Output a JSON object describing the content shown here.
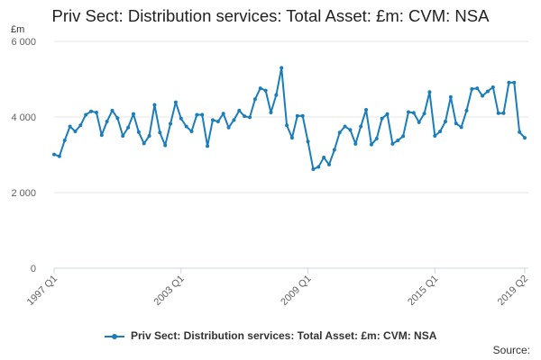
{
  "colors": {
    "series": "#1b7db9",
    "grid": "#e6e6e6",
    "axis": "#ccd6eb",
    "text": "#606060"
  },
  "source_label": "Source:",
  "chart_data": {
    "type": "line",
    "title": "Priv Sect: Distribution services: Total Asset: £m: CVM: NSA",
    "ylabel": "£m",
    "ylim": [
      0,
      6000
    ],
    "yticks": [
      0,
      2000,
      4000,
      6000
    ],
    "ytick_labels": [
      "0",
      "2 000",
      "4 000",
      "6 000"
    ],
    "xtick_labels": [
      "1997 Q1",
      "2003 Q1",
      "2009 Q1",
      "2015 Q1",
      "2019 Q2"
    ],
    "xtick_index": [
      0,
      24,
      48,
      72,
      89
    ],
    "legend_position": "bottom",
    "grid": true,
    "series": [
      {
        "name": "Priv Sect: Distribution services: Total Asset: £m: CVM: NSA",
        "x": [
          "1997 Q1",
          "1997 Q2",
          "1997 Q3",
          "1997 Q4",
          "1998 Q1",
          "1998 Q2",
          "1998 Q3",
          "1998 Q4",
          "1999 Q1",
          "1999 Q2",
          "1999 Q3",
          "1999 Q4",
          "2000 Q1",
          "2000 Q2",
          "2000 Q3",
          "2000 Q4",
          "2001 Q1",
          "2001 Q2",
          "2001 Q3",
          "2001 Q4",
          "2002 Q1",
          "2002 Q2",
          "2002 Q3",
          "2002 Q4",
          "2003 Q1",
          "2003 Q2",
          "2003 Q3",
          "2003 Q4",
          "2004 Q1",
          "2004 Q2",
          "2004 Q3",
          "2004 Q4",
          "2005 Q1",
          "2005 Q2",
          "2005 Q3",
          "2005 Q4",
          "2006 Q1",
          "2006 Q2",
          "2006 Q3",
          "2006 Q4",
          "2007 Q1",
          "2007 Q2",
          "2007 Q3",
          "2007 Q4",
          "2008 Q1",
          "2008 Q2",
          "2008 Q3",
          "2008 Q4",
          "2009 Q1",
          "2009 Q2",
          "2009 Q3",
          "2009 Q4",
          "2010 Q1",
          "2010 Q2",
          "2010 Q3",
          "2010 Q4",
          "2011 Q1",
          "2011 Q2",
          "2011 Q3",
          "2011 Q4",
          "2012 Q1",
          "2012 Q2",
          "2012 Q3",
          "2012 Q4",
          "2013 Q1",
          "2013 Q2",
          "2013 Q3",
          "2013 Q4",
          "2014 Q1",
          "2014 Q2",
          "2014 Q3",
          "2014 Q4",
          "2015 Q1",
          "2015 Q2",
          "2015 Q3",
          "2015 Q4",
          "2016 Q1",
          "2016 Q2",
          "2016 Q3",
          "2016 Q4",
          "2017 Q1",
          "2017 Q2",
          "2017 Q3",
          "2017 Q4",
          "2018 Q1",
          "2018 Q2",
          "2018 Q3",
          "2018 Q4",
          "2019 Q1",
          "2019 Q2"
        ],
        "values": [
          3010,
          2960,
          3380,
          3750,
          3620,
          3780,
          4060,
          4150,
          4120,
          3520,
          3880,
          4170,
          3970,
          3500,
          3720,
          4080,
          3600,
          3300,
          3500,
          4320,
          3590,
          3250,
          3820,
          4390,
          3960,
          3750,
          3620,
          4060,
          4060,
          3230,
          3920,
          3880,
          4090,
          3720,
          3920,
          4170,
          4020,
          3990,
          4470,
          4760,
          4700,
          4120,
          4580,
          5300,
          3780,
          3450,
          4030,
          4030,
          3350,
          2620,
          2680,
          2930,
          2740,
          3130,
          3590,
          3750,
          3660,
          3290,
          3750,
          4190,
          3270,
          3430,
          3960,
          4080,
          3290,
          3380,
          3490,
          4130,
          4110,
          3860,
          4090,
          4660,
          3500,
          3620,
          3880,
          4530,
          3830,
          3730,
          4170,
          4740,
          4760,
          4560,
          4680,
          4790,
          4100,
          4100,
          4910,
          4910,
          3600,
          3450
        ]
      }
    ]
  }
}
